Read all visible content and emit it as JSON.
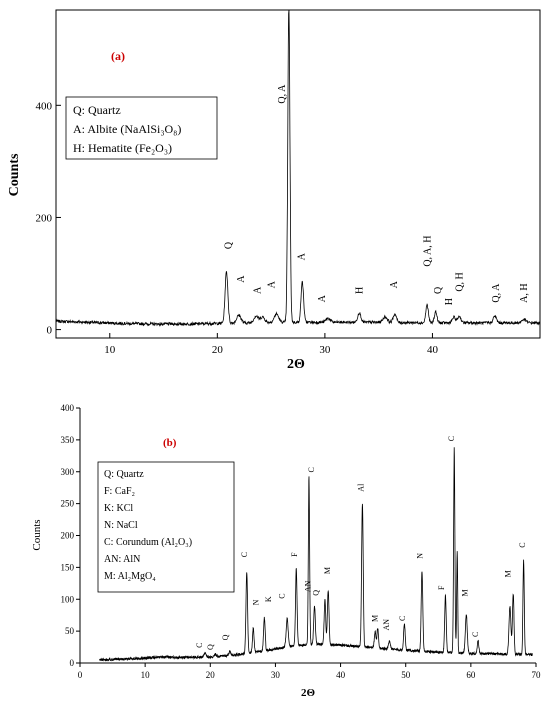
{
  "chart_data": [
    {
      "type": "line",
      "panel_label": "(a)",
      "xlabel": "2Θ",
      "ylabel": "Counts",
      "xlim": [
        5,
        50
      ],
      "ylim": [
        -15,
        570
      ],
      "x_ticks": [
        10,
        20,
        30,
        40
      ],
      "y_ticks": [
        0,
        200,
        400
      ],
      "x_tick_labels": [
        "10",
        "20",
        "30",
        "40"
      ],
      "y_tick_labels": [
        "0",
        "200",
        "400"
      ],
      "grid": false,
      "line_color": "#000000",
      "panel_label_color": "#cc0000",
      "legend_placement": "top-left",
      "legend": [
        "Q: Quartz",
        "A: Albite (NaAlSi₃O₈)",
        "H: Hematite (Fe₂O₃)"
      ],
      "baseline": [
        [
          5,
          15
        ],
        [
          8,
          13
        ],
        [
          11,
          11
        ],
        [
          14,
          10
        ],
        [
          17,
          10
        ],
        [
          20,
          11
        ],
        [
          23,
          12
        ],
        [
          25,
          13
        ],
        [
          30,
          13
        ],
        [
          35,
          13
        ],
        [
          40,
          12
        ],
        [
          45,
          12
        ],
        [
          50,
          12
        ]
      ],
      "peaks": [
        {
          "x": 20.85,
          "y": 92,
          "w": 0.13
        },
        {
          "x": 22.0,
          "y": 14,
          "w": 0.2
        },
        {
          "x": 23.6,
          "y": 12,
          "w": 0.2
        },
        {
          "x": 24.2,
          "y": 10,
          "w": 0.2
        },
        {
          "x": 25.5,
          "y": 15,
          "w": 0.2
        },
        {
          "x": 26.65,
          "y": 560,
          "w": 0.1
        },
        {
          "x": 27.9,
          "y": 72,
          "w": 0.12
        },
        {
          "x": 30.3,
          "y": 7,
          "w": 0.2
        },
        {
          "x": 33.2,
          "y": 17,
          "w": 0.15
        },
        {
          "x": 35.6,
          "y": 10,
          "w": 0.2
        },
        {
          "x": 36.5,
          "y": 15,
          "w": 0.15
        },
        {
          "x": 39.5,
          "y": 32,
          "w": 0.12
        },
        {
          "x": 40.3,
          "y": 20,
          "w": 0.12
        },
        {
          "x": 42.0,
          "y": 10,
          "w": 0.15
        },
        {
          "x": 42.5,
          "y": 12,
          "w": 0.15
        },
        {
          "x": 45.8,
          "y": 12,
          "w": 0.15
        },
        {
          "x": 48.5,
          "y": 6,
          "w": 0.2
        }
      ],
      "annotations": [
        {
          "text": "Q",
          "x": 21.3,
          "y": 150
        },
        {
          "text": "A",
          "x": 22.5,
          "y": 90
        },
        {
          "text": "A",
          "x": 24.0,
          "y": 70
        },
        {
          "text": "A",
          "x": 25.3,
          "y": 80
        },
        {
          "text": "Q, A",
          "x": 26.3,
          "y": 420
        },
        {
          "text": "A",
          "x": 28.1,
          "y": 130
        },
        {
          "text": "A",
          "x": 30.0,
          "y": 55
        },
        {
          "text": "H",
          "x": 33.5,
          "y": 70
        },
        {
          "text": "A",
          "x": 36.7,
          "y": 80
        },
        {
          "text": "Q, A, H",
          "x": 39.8,
          "y": 140
        },
        {
          "text": "Q",
          "x": 40.8,
          "y": 70
        },
        {
          "text": "H",
          "x": 41.8,
          "y": 50
        },
        {
          "text": "Q, H",
          "x": 42.8,
          "y": 85
        },
        {
          "text": "Q, A",
          "x": 46.2,
          "y": 65
        },
        {
          "text": "A, H",
          "x": 48.8,
          "y": 65
        }
      ]
    },
    {
      "type": "line",
      "panel_label": "(b)",
      "xlabel": "2Θ",
      "ylabel": "Counts",
      "xlim": [
        0,
        70
      ],
      "ylim": [
        0,
        400
      ],
      "x_ticks": [
        0,
        10,
        20,
        30,
        40,
        50,
        60,
        70
      ],
      "y_ticks": [
        0,
        50,
        100,
        150,
        200,
        250,
        300,
        350,
        400
      ],
      "x_tick_labels": [
        "0",
        "10",
        "20",
        "30",
        "40",
        "50",
        "60",
        "70"
      ],
      "y_tick_labels": [
        "0",
        "50",
        "100",
        "150",
        "200",
        "250",
        "300",
        "350",
        "400"
      ],
      "grid": false,
      "line_color": "#000000",
      "panel_label_color": "#cc0000",
      "legend_placement": "top-left",
      "legend": [
        "Q: Quartz",
        "F: CaF₂",
        "K: KCl",
        "N: NaCl",
        "C: Corundum (Al₂O₃)",
        "AN: AlN",
        "M: Al₂MgO₄"
      ],
      "baseline": [
        [
          3,
          5
        ],
        [
          6,
          6
        ],
        [
          9,
          7
        ],
        [
          12,
          9
        ],
        [
          15,
          9
        ],
        [
          18,
          9
        ],
        [
          21,
          10
        ],
        [
          24,
          13
        ],
        [
          27,
          17
        ],
        [
          30,
          22
        ],
        [
          33,
          27
        ],
        [
          36,
          30
        ],
        [
          40,
          28
        ],
        [
          45,
          24
        ],
        [
          50,
          20
        ],
        [
          55,
          17
        ],
        [
          60,
          15
        ],
        [
          65,
          14
        ],
        [
          69.5,
          13
        ]
      ],
      "peaks": [
        {
          "x": 19.2,
          "y": 7,
          "w": 0.15
        },
        {
          "x": 20.8,
          "y": 4,
          "w": 0.15
        },
        {
          "x": 23.0,
          "y": 6,
          "w": 0.15
        },
        {
          "x": 25.6,
          "y": 127,
          "w": 0.12
        },
        {
          "x": 26.6,
          "y": 40,
          "w": 0.12
        },
        {
          "x": 28.3,
          "y": 52,
          "w": 0.12
        },
        {
          "x": 31.8,
          "y": 45,
          "w": 0.15
        },
        {
          "x": 33.2,
          "y": 120,
          "w": 0.12
        },
        {
          "x": 35.15,
          "y": 263,
          "w": 0.1
        },
        {
          "x": 36.0,
          "y": 60,
          "w": 0.12
        },
        {
          "x": 37.6,
          "y": 70,
          "w": 0.12
        },
        {
          "x": 38.1,
          "y": 85,
          "w": 0.12
        },
        {
          "x": 43.35,
          "y": 225,
          "w": 0.12
        },
        {
          "x": 45.3,
          "y": 25,
          "w": 0.12
        },
        {
          "x": 45.7,
          "y": 32,
          "w": 0.12
        },
        {
          "x": 47.5,
          "y": 12,
          "w": 0.15
        },
        {
          "x": 49.8,
          "y": 42,
          "w": 0.12
        },
        {
          "x": 52.5,
          "y": 125,
          "w": 0.12
        },
        {
          "x": 56.1,
          "y": 90,
          "w": 0.12
        },
        {
          "x": 57.45,
          "y": 323,
          "w": 0.1
        },
        {
          "x": 57.9,
          "y": 160,
          "w": 0.08
        },
        {
          "x": 59.3,
          "y": 60,
          "w": 0.15
        },
        {
          "x": 61.1,
          "y": 20,
          "w": 0.12
        },
        {
          "x": 66.0,
          "y": 75,
          "w": 0.15
        },
        {
          "x": 66.5,
          "y": 95,
          "w": 0.12
        },
        {
          "x": 68.1,
          "y": 148,
          "w": 0.1
        }
      ],
      "annotations": [
        {
          "text": "C",
          "x": 18.7,
          "y": 28
        },
        {
          "text": "Q",
          "x": 20.4,
          "y": 25
        },
        {
          "text": "Q",
          "x": 22.7,
          "y": 40
        },
        {
          "text": "C",
          "x": 25.6,
          "y": 170
        },
        {
          "text": "N",
          "x": 27.4,
          "y": 95
        },
        {
          "text": "K",
          "x": 29.3,
          "y": 100
        },
        {
          "text": "C",
          "x": 31.4,
          "y": 105
        },
        {
          "text": "F",
          "x": 33.3,
          "y": 170
        },
        {
          "text": "C",
          "x": 35.9,
          "y": 303
        },
        {
          "text": "AN",
          "x": 35.4,
          "y": 120
        },
        {
          "text": "Q",
          "x": 36.6,
          "y": 110
        },
        {
          "text": "M",
          "x": 38.4,
          "y": 145
        },
        {
          "text": "Al",
          "x": 43.5,
          "y": 275
        },
        {
          "text": "M",
          "x": 45.7,
          "y": 70
        },
        {
          "text": "AN",
          "x": 47.4,
          "y": 60
        },
        {
          "text": "C",
          "x": 49.9,
          "y": 70
        },
        {
          "text": "N",
          "x": 52.6,
          "y": 168
        },
        {
          "text": "F",
          "x": 55.9,
          "y": 118
        },
        {
          "text": "C",
          "x": 57.4,
          "y": 352
        },
        {
          "text": "M",
          "x": 59.5,
          "y": 110
        },
        {
          "text": "C",
          "x": 61.1,
          "y": 45
        },
        {
          "text": "M",
          "x": 66.1,
          "y": 140
        },
        {
          "text": "C",
          "x": 68.3,
          "y": 185
        }
      ]
    }
  ]
}
